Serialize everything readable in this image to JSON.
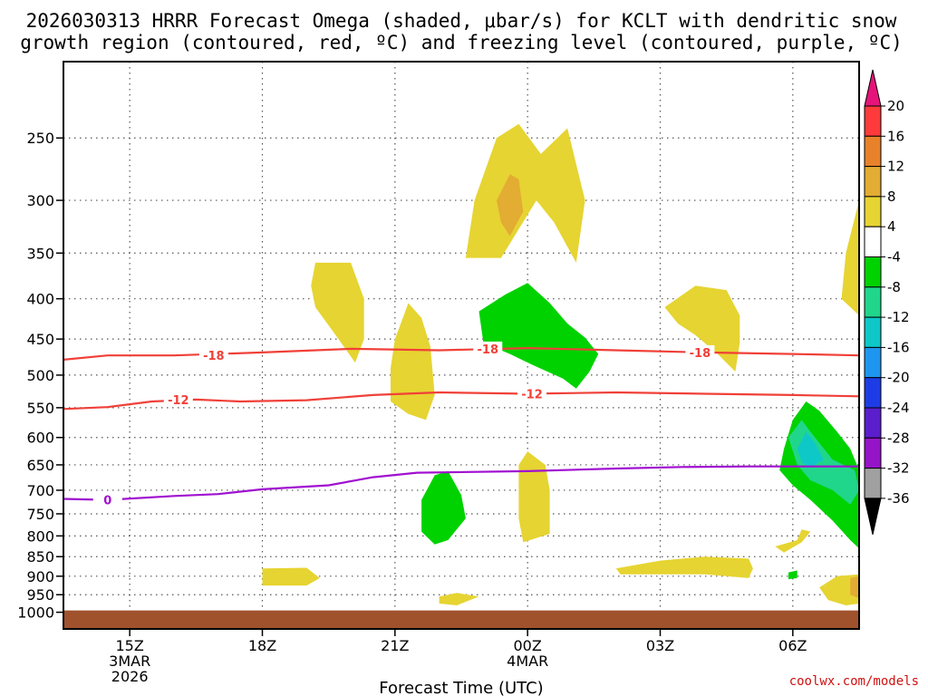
{
  "chart_data": {
    "type": "contour",
    "title": [
      "2026030313 HRRR Forecast Omega (shaded, μbar/s) for KCLT with dendritic snow",
      "growth region (contoured, red, ºC) and freezing level (contoured, purple, ºC)"
    ],
    "xlabel": "Forecast Time (UTC)",
    "ylabel": "",
    "xlim": [
      13.5,
      31.5
    ],
    "x_units": "hours UTC from 00Z 3MAR2026",
    "y_scale": "log",
    "y_inverted": true,
    "ylim": [
      1050,
      200
    ],
    "y_ticks": [
      250,
      300,
      350,
      400,
      450,
      500,
      550,
      600,
      650,
      700,
      750,
      800,
      850,
      900,
      950,
      1000
    ],
    "x_ticks": [
      {
        "x": 15,
        "lines": [
          "15Z",
          "3MAR",
          "2026"
        ]
      },
      {
        "x": 18,
        "lines": [
          "18Z"
        ]
      },
      {
        "x": 21,
        "lines": [
          "21Z"
        ]
      },
      {
        "x": 24,
        "lines": [
          "00Z",
          "4MAR"
        ]
      },
      {
        "x": 27,
        "lines": [
          "03Z"
        ]
      },
      {
        "x": 30,
        "lines": [
          "06Z"
        ]
      }
    ],
    "grid": true,
    "colorbar": {
      "levels": [
        20,
        16,
        12,
        8,
        4,
        -4,
        -8,
        -12,
        -16,
        -20,
        -24,
        -28,
        -32,
        -36
      ],
      "colors": [
        "#ff3a3a",
        "#e8822a",
        "#e3ac32",
        "#e6d432",
        "#ffffff",
        "#00d200",
        "#20d68a",
        "#0ec8c8",
        "#1e96f0",
        "#1e3ce6",
        "#5a1ecd",
        "#9614c8",
        "#a0a0a0"
      ],
      "top_color": "#e6147a",
      "bottom_color": "#000000"
    },
    "contours": [
      {
        "name": "-18",
        "color": "#f04038",
        "level": -18,
        "points": [
          [
            13.5,
            478
          ],
          [
            14.5,
            472
          ],
          [
            16,
            472
          ],
          [
            18,
            468
          ],
          [
            20,
            463
          ],
          [
            22,
            465
          ],
          [
            24,
            462
          ],
          [
            26,
            465
          ],
          [
            28,
            468
          ],
          [
            30,
            470
          ],
          [
            31.5,
            472
          ]
        ],
        "label_at": [
          [
            16.9,
            472
          ],
          [
            23.1,
            463
          ],
          [
            27.9,
            468
          ]
        ]
      },
      {
        "name": "-12",
        "color": "#f04038",
        "level": -12,
        "points": [
          [
            13.5,
            552
          ],
          [
            14.5,
            549
          ],
          [
            15.5,
            540
          ],
          [
            16.5,
            537
          ],
          [
            17.5,
            540
          ],
          [
            19,
            538
          ],
          [
            20.5,
            530
          ],
          [
            22,
            526
          ],
          [
            24,
            528
          ],
          [
            26,
            526
          ],
          [
            28,
            528
          ],
          [
            30,
            530
          ],
          [
            31.5,
            532
          ]
        ],
        "label_at": [
          [
            16.1,
            537
          ],
          [
            24.1,
            528
          ]
        ]
      },
      {
        "name": "0",
        "color": "#a010d0",
        "level": 0,
        "points": [
          [
            13.5,
            718
          ],
          [
            14.5,
            720
          ],
          [
            16,
            712
          ],
          [
            17,
            708
          ],
          [
            18,
            698
          ],
          [
            19.5,
            690
          ],
          [
            20.5,
            674
          ],
          [
            21.5,
            665
          ],
          [
            24,
            662
          ],
          [
            26,
            657
          ],
          [
            27.5,
            654
          ],
          [
            29,
            653
          ],
          [
            31.5,
            653
          ]
        ],
        "label_at": [
          [
            14.5,
            720
          ]
        ]
      }
    ],
    "shaded": [
      {
        "value": 6,
        "color": "#e6d432",
        "points": [
          [
            22.6,
            355
          ],
          [
            22.8,
            300
          ],
          [
            23.3,
            250
          ],
          [
            23.8,
            240
          ],
          [
            24.3,
            262
          ],
          [
            24.9,
            243
          ],
          [
            25.3,
            300
          ],
          [
            25.1,
            360
          ],
          [
            24.6,
            320
          ],
          [
            24.2,
            300
          ],
          [
            23.4,
            355
          ]
        ]
      },
      {
        "value": 10,
        "color": "#e3ac32",
        "points": [
          [
            23.3,
            300
          ],
          [
            23.6,
            278
          ],
          [
            23.8,
            282
          ],
          [
            23.9,
            310
          ],
          [
            23.6,
            333
          ],
          [
            23.4,
            320
          ]
        ]
      },
      {
        "value": 6,
        "color": "#e6d432",
        "points": [
          [
            19.2,
            360
          ],
          [
            20,
            360
          ],
          [
            20.3,
            400
          ],
          [
            20.3,
            450
          ],
          [
            20.1,
            482
          ],
          [
            19.6,
            440
          ],
          [
            19.2,
            410
          ],
          [
            19.1,
            385
          ]
        ]
      },
      {
        "value": 6,
        "color": "#e6d432",
        "points": [
          [
            21.2,
            420
          ],
          [
            21.3,
            405
          ],
          [
            21.6,
            423
          ],
          [
            21.8,
            460
          ],
          [
            21.9,
            530
          ],
          [
            21.7,
            570
          ],
          [
            21.3,
            560
          ],
          [
            20.9,
            540
          ],
          [
            20.9,
            490
          ],
          [
            21.0,
            450
          ]
        ]
      },
      {
        "value": 6,
        "color": "#e6d432",
        "points": [
          [
            27.1,
            410
          ],
          [
            27.8,
            385
          ],
          [
            28.5,
            390
          ],
          [
            28.8,
            420
          ],
          [
            28.8,
            455
          ],
          [
            28.7,
            495
          ],
          [
            28.3,
            470
          ],
          [
            27.8,
            445
          ],
          [
            27.4,
            430
          ]
        ]
      },
      {
        "value": 6,
        "color": "#e6d432",
        "points": [
          [
            31.5,
            300
          ],
          [
            31.5,
            420
          ],
          [
            31.1,
            400
          ],
          [
            31.2,
            350
          ]
        ]
      },
      {
        "value": -6,
        "color": "#00d200",
        "points": [
          [
            22.9,
            415
          ],
          [
            23.5,
            395
          ],
          [
            24,
            382
          ],
          [
            24.5,
            405
          ],
          [
            24.9,
            430
          ],
          [
            25.3,
            448
          ],
          [
            25.6,
            470
          ],
          [
            25.4,
            495
          ],
          [
            25.1,
            520
          ],
          [
            24.8,
            505
          ],
          [
            24.1,
            485
          ],
          [
            23.6,
            470
          ],
          [
            23,
            455
          ]
        ]
      },
      {
        "value": 6,
        "color": "#e6d432",
        "points": [
          [
            23.8,
            650
          ],
          [
            24,
            625
          ],
          [
            24.4,
            650
          ],
          [
            24.5,
            700
          ],
          [
            24.5,
            795
          ],
          [
            23.9,
            815
          ],
          [
            23.8,
            760
          ]
        ]
      },
      {
        "value": -6,
        "color": "#00d200",
        "points": [
          [
            21.6,
            720
          ],
          [
            21.9,
            670
          ],
          [
            22.2,
            662
          ],
          [
            22.5,
            710
          ],
          [
            22.6,
            760
          ],
          [
            22.2,
            810
          ],
          [
            21.9,
            820
          ],
          [
            21.6,
            790
          ]
        ]
      },
      {
        "value": -6,
        "color": "#00d200",
        "points": [
          [
            29.8,
            620
          ],
          [
            30,
            570
          ],
          [
            30.3,
            540
          ],
          [
            30.6,
            555
          ],
          [
            31,
            590
          ],
          [
            31.3,
            620
          ],
          [
            31.5,
            660
          ],
          [
            31.5,
            830
          ],
          [
            31.3,
            810
          ],
          [
            30.9,
            765
          ],
          [
            30.4,
            720
          ],
          [
            30,
            690
          ],
          [
            29.7,
            660
          ]
        ]
      },
      {
        "value": -10,
        "color": "#20d68a",
        "points": [
          [
            29.9,
            600
          ],
          [
            30.2,
            570
          ],
          [
            30.4,
            590
          ],
          [
            30.9,
            640
          ],
          [
            31.4,
            660
          ],
          [
            31.5,
            700
          ],
          [
            31.3,
            730
          ],
          [
            30.9,
            700
          ],
          [
            30.4,
            680
          ],
          [
            30.1,
            650
          ]
        ]
      },
      {
        "value": -14,
        "color": "#0ec8c8",
        "points": [
          [
            30.1,
            620
          ],
          [
            30.3,
            590
          ],
          [
            30.5,
            610
          ],
          [
            30.7,
            640
          ],
          [
            30.4,
            655
          ],
          [
            30.2,
            645
          ]
        ]
      },
      {
        "value": 6,
        "color": "#e6d432",
        "points": [
          [
            18,
            880
          ],
          [
            19,
            878
          ],
          [
            19.3,
            905
          ],
          [
            19,
            925
          ],
          [
            18,
            925
          ]
        ]
      },
      {
        "value": 6,
        "color": "#e6d432",
        "points": [
          [
            22,
            955
          ],
          [
            22.4,
            945
          ],
          [
            22.9,
            955
          ],
          [
            22.4,
            980
          ],
          [
            22,
            975
          ]
        ]
      },
      {
        "value": 6,
        "color": "#e6d432",
        "points": [
          [
            26,
            880
          ],
          [
            27,
            860
          ],
          [
            28,
            850
          ],
          [
            29,
            855
          ],
          [
            29.1,
            880
          ],
          [
            29,
            905
          ],
          [
            28,
            895
          ],
          [
            27,
            895
          ],
          [
            26.1,
            895
          ]
        ]
      },
      {
        "value": 6,
        "color": "#e6d432",
        "points": [
          [
            29.6,
            825
          ],
          [
            30.1,
            810
          ],
          [
            30.2,
            785
          ],
          [
            30.4,
            790
          ],
          [
            30.2,
            815
          ],
          [
            29.8,
            840
          ]
        ]
      },
      {
        "value": -6,
        "color": "#00d200",
        "points": [
          [
            29.9,
            890
          ],
          [
            30.1,
            885
          ],
          [
            30.1,
            905
          ],
          [
            29.9,
            908
          ]
        ]
      },
      {
        "value": 6,
        "color": "#e6d432",
        "points": [
          [
            30.6,
            930
          ],
          [
            31,
            900
          ],
          [
            31.5,
            895
          ],
          [
            31.5,
            975
          ],
          [
            31.2,
            980
          ],
          [
            30.8,
            965
          ]
        ]
      },
      {
        "value": 10,
        "color": "#e3ac32",
        "points": [
          [
            31.3,
            905
          ],
          [
            31.5,
            900
          ],
          [
            31.5,
            960
          ],
          [
            31.3,
            950
          ]
        ]
      }
    ],
    "terrain": {
      "color": "#a0522d",
      "surface_pressure": 1000
    }
  },
  "credit": "coolwx.com/models",
  "colors": {
    "frame": "#000000",
    "grid": "#555555"
  }
}
